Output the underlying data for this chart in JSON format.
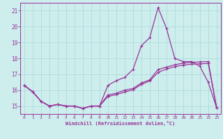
{
  "xlabel": "Windchill (Refroidissement éolien,°C)",
  "background_color": "#cdeeed",
  "line_color": "#993399",
  "grid_color": "#a8d8d8",
  "xlim": [
    -0.5,
    23.5
  ],
  "ylim": [
    14.5,
    21.5
  ],
  "yticks": [
    15,
    16,
    17,
    18,
    19,
    20,
    21
  ],
  "xticks": [
    0,
    1,
    2,
    3,
    4,
    5,
    6,
    7,
    8,
    9,
    10,
    11,
    12,
    13,
    14,
    15,
    16,
    17,
    18,
    19,
    20,
    21,
    22,
    23
  ],
  "hours": [
    0,
    1,
    2,
    3,
    4,
    5,
    6,
    7,
    8,
    9,
    10,
    11,
    12,
    13,
    14,
    15,
    16,
    17,
    18,
    19,
    20,
    21,
    22,
    23
  ],
  "temp": [
    16.3,
    15.9,
    15.3,
    15.0,
    15.1,
    15.0,
    15.0,
    14.85,
    15.0,
    15.0,
    16.3,
    16.6,
    16.8,
    17.3,
    18.8,
    19.3,
    21.2,
    19.9,
    18.0,
    17.8,
    17.8,
    17.5,
    16.5,
    14.9
  ],
  "windchill": [
    16.3,
    15.9,
    15.3,
    15.0,
    15.1,
    15.0,
    15.0,
    14.85,
    15.0,
    15.0,
    15.7,
    15.8,
    16.0,
    16.1,
    16.45,
    16.65,
    17.3,
    17.45,
    17.6,
    17.7,
    17.75,
    17.78,
    17.8,
    14.9
  ],
  "smooth": [
    16.3,
    15.9,
    15.3,
    15.0,
    15.1,
    15.0,
    15.0,
    14.85,
    15.0,
    15.0,
    15.6,
    15.72,
    15.88,
    16.02,
    16.36,
    16.58,
    17.12,
    17.33,
    17.48,
    17.58,
    17.63,
    17.66,
    17.68,
    14.9
  ]
}
